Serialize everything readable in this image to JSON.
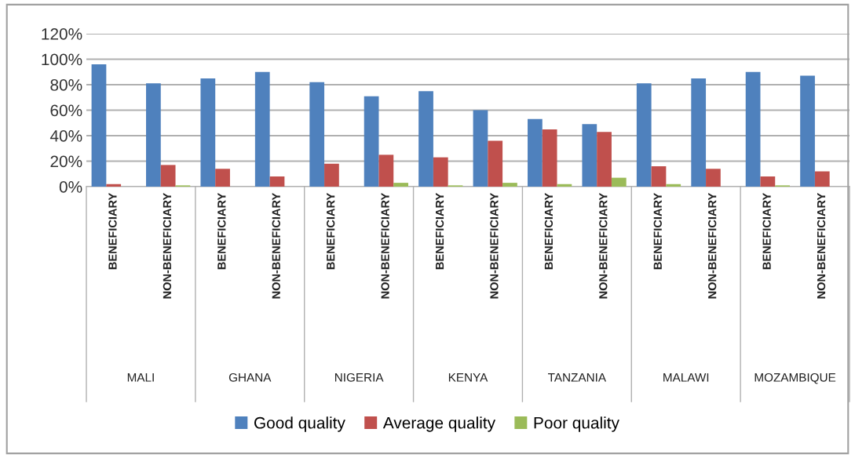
{
  "chart_data": {
    "type": "bar",
    "categories": [
      "BENEFICIARY",
      "NON-BENEFICIARY",
      "BENEFICIARY",
      "NON-BENEFICIARY",
      "BENEFICIARY",
      "NON-BENEFICIARY",
      "BENEFICIARY",
      "NON-BENEFICIARY",
      "BENEFICIARY",
      "NON-BENEFICIARY",
      "BENEFICIARY",
      "NON-BENEFICIARY",
      "BENEFICIARY",
      "NON-BENEFICIARY"
    ],
    "series": [
      {
        "name": "Good quality",
        "color": "#4f81bd",
        "values": [
          96,
          81,
          85,
          90,
          82,
          71,
          75,
          60,
          53,
          49,
          81,
          85,
          90,
          87
        ]
      },
      {
        "name": "Average quality",
        "color": "#c0504d",
        "values": [
          2,
          17,
          14,
          8,
          18,
          25,
          23,
          36,
          45,
          43,
          16,
          14,
          8,
          12
        ]
      },
      {
        "name": "Poor quality",
        "color": "#9bbb59",
        "values": [
          0,
          1,
          0,
          0,
          0,
          3,
          1,
          3,
          2,
          7,
          2,
          0,
          1,
          0
        ]
      }
    ],
    "annotations": [
      "MALI",
      "GHANA",
      "NIGERIA",
      "KENYA",
      "TANZANIA",
      "MALAWI",
      "MOZAMBIQUE"
    ],
    "ylim": [
      0,
      120
    ],
    "yticks": [
      {
        "value": 0,
        "label": "0%"
      },
      {
        "value": 20,
        "label": "20%"
      },
      {
        "value": 40,
        "label": "40%"
      },
      {
        "value": 60,
        "label": "60%"
      },
      {
        "value": 80,
        "label": "80%"
      },
      {
        "value": 100,
        "label": "100%"
      },
      {
        "value": 120,
        "label": "120%"
      }
    ],
    "grid": "y",
    "legend": "bottom"
  }
}
